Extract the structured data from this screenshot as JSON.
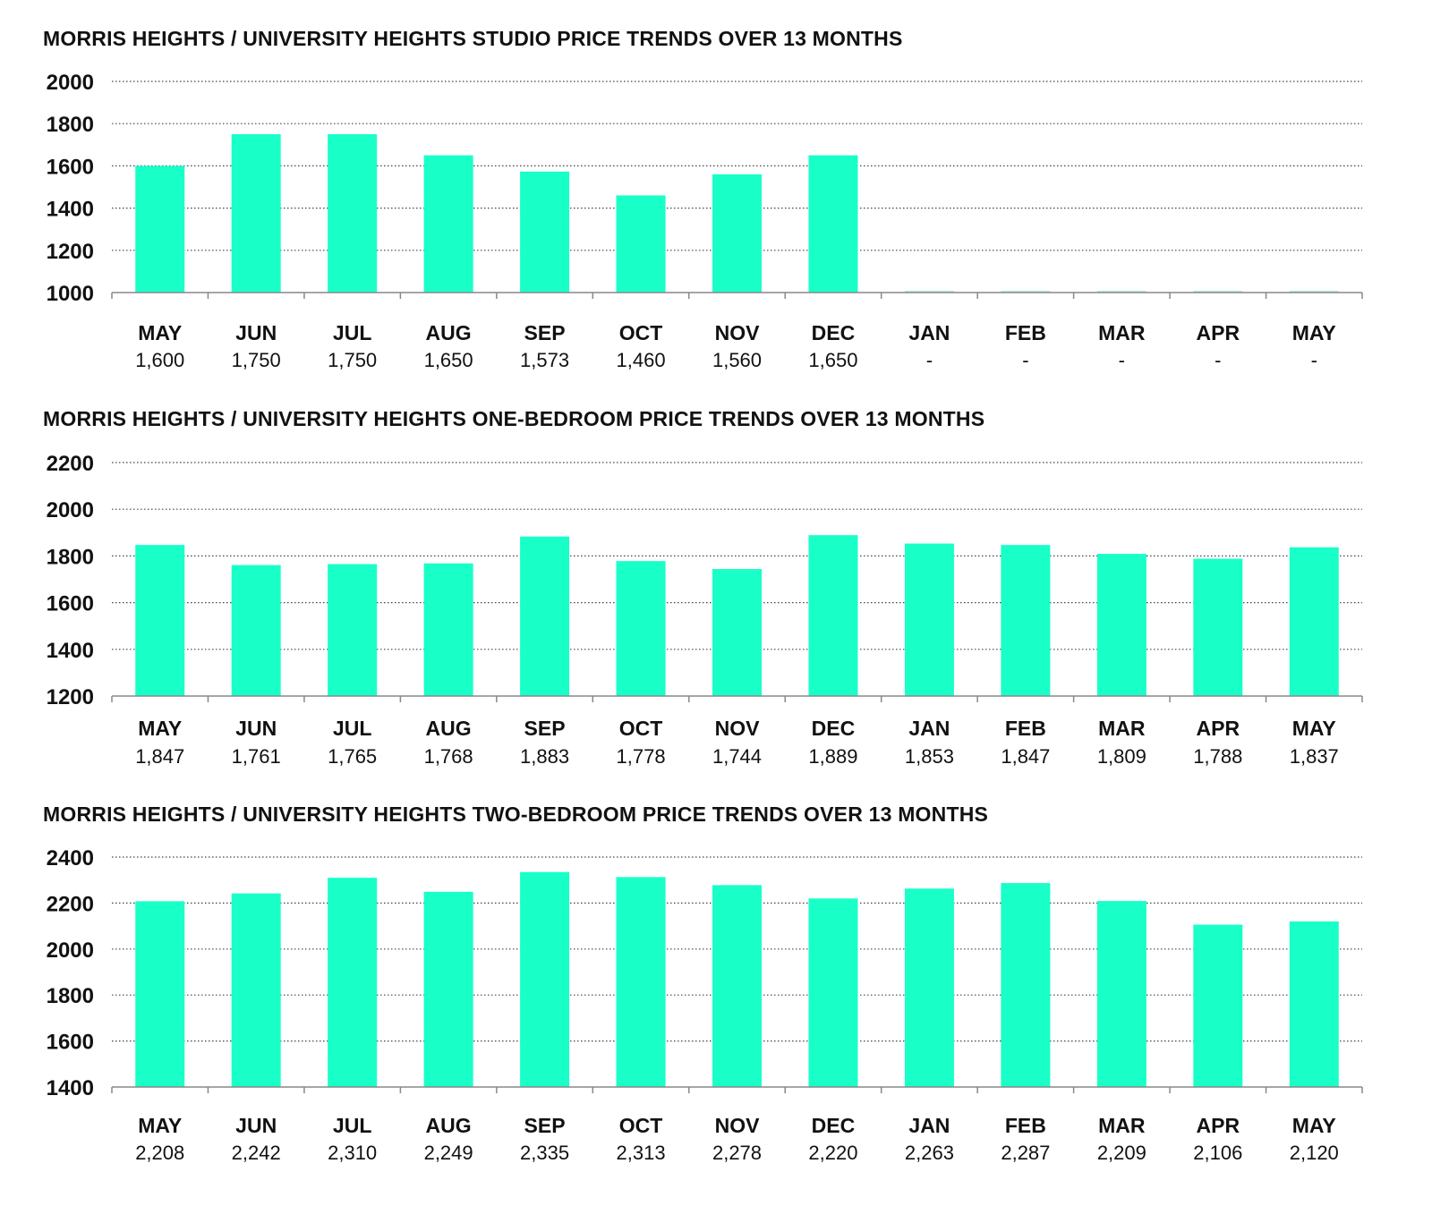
{
  "chart_data": [
    {
      "type": "bar",
      "title": "MORRIS HEIGHTS / UNIVERSITY HEIGHTS STUDIO PRICE TRENDS OVER 13 MONTHS",
      "categories": [
        "MAY",
        "JUN",
        "JUL",
        "AUG",
        "SEP",
        "OCT",
        "NOV",
        "DEC",
        "JAN",
        "FEB",
        "MAR",
        "APR",
        "MAY"
      ],
      "values": [
        1600,
        1750,
        1750,
        1650,
        1573,
        1460,
        1560,
        1650,
        null,
        null,
        null,
        null,
        null
      ],
      "value_labels": [
        "1,600",
        "1,750",
        "1,750",
        "1,650",
        "1,573",
        "1,460",
        "1,560",
        "1,650",
        "-",
        "-",
        "-",
        "-",
        "-"
      ],
      "ylim": [
        1000,
        2000
      ],
      "yticks": [
        "2000",
        "1800",
        "1600",
        "1400",
        "1200",
        "1000"
      ],
      "xlabel": "",
      "ylabel": "",
      "grid": true,
      "bar_color": "#19FFC8"
    },
    {
      "type": "bar",
      "title": "MORRIS HEIGHTS / UNIVERSITY HEIGHTS ONE-BEDROOM PRICE TRENDS OVER 13 MONTHS",
      "categories": [
        "MAY",
        "JUN",
        "JUL",
        "AUG",
        "SEP",
        "OCT",
        "NOV",
        "DEC",
        "JAN",
        "FEB",
        "MAR",
        "APR",
        "MAY"
      ],
      "values": [
        1847,
        1761,
        1765,
        1768,
        1883,
        1778,
        1744,
        1889,
        1853,
        1847,
        1809,
        1788,
        1837
      ],
      "value_labels": [
        "1,847",
        "1,761",
        "1,765",
        "1,768",
        "1,883",
        "1,778",
        "1,744",
        "1,889",
        "1,853",
        "1,847",
        "1,809",
        "1,788",
        "1,837"
      ],
      "ylim": [
        1200,
        2200
      ],
      "yticks": [
        "2200",
        "2000",
        "1800",
        "1600",
        "1400",
        "1200"
      ],
      "xlabel": "",
      "ylabel": "",
      "grid": true,
      "bar_color": "#19FFC8"
    },
    {
      "type": "bar",
      "title": "MORRIS HEIGHTS / UNIVERSITY HEIGHTS TWO-BEDROOM PRICE TRENDS OVER 13 MONTHS",
      "categories": [
        "MAY",
        "JUN",
        "JUL",
        "AUG",
        "SEP",
        "OCT",
        "NOV",
        "DEC",
        "JAN",
        "FEB",
        "MAR",
        "APR",
        "MAY"
      ],
      "values": [
        2208,
        2242,
        2310,
        2249,
        2335,
        2313,
        2278,
        2220,
        2263,
        2287,
        2209,
        2106,
        2120
      ],
      "value_labels": [
        "2,208",
        "2,242",
        "2,310",
        "2,249",
        "2,335",
        "2,313",
        "2,278",
        "2,220",
        "2,263",
        "2,287",
        "2,209",
        "2,106",
        "2,120"
      ],
      "ylim": [
        1400,
        2400
      ],
      "yticks": [
        "2400",
        "2200",
        "2000",
        "1800",
        "1600",
        "1400"
      ],
      "xlabel": "",
      "ylabel": "",
      "grid": true,
      "bar_color": "#19FFC8"
    }
  ]
}
